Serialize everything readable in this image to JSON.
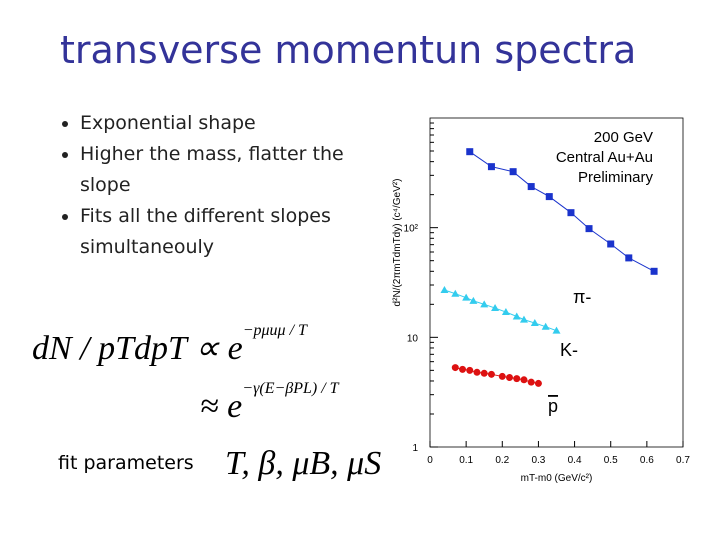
{
  "title": "transverse momentun spectra",
  "bullets": [
    "Exponential shape",
    "Higher the mass, flatter the slope",
    "Fits all the different slopes simultaneouly"
  ],
  "equations": {
    "line1": "dN / pTdpT ∝ e",
    "line1_exp": "−pμuμ / T",
    "line2": "≈ e",
    "line2_exp": "−γ(E−βPL) / T",
    "fit_label": "fit parameters",
    "fit_params": "T, β, μB, μS"
  },
  "chart_data": {
    "type": "scatter",
    "x_label": "mT-m0 (GeV/c²)",
    "y_label": "d²N/(2πmTdmTdy) (c⁴/GeV²)",
    "annotations": [
      "200 GeV",
      "Central Au+Au",
      "Preliminary"
    ],
    "xlim": [
      0,
      0.7
    ],
    "xticks": [
      0,
      0.1,
      0.2,
      0.3,
      0.4,
      0.5,
      0.6,
      0.7
    ],
    "ylim": [
      1,
      1000
    ],
    "log_y": true,
    "yticks": [
      1,
      10,
      {
        "value": 100,
        "label": "10²"
      }
    ],
    "series": [
      {
        "name": "π-",
        "color": "#1a33cc",
        "marker": "square",
        "x": [
          0.11,
          0.17,
          0.23,
          0.28,
          0.33,
          0.39,
          0.44,
          0.5,
          0.55,
          0.62
        ],
        "values": [
          493,
          360,
          324,
          237,
          192,
          137,
          98,
          71,
          53,
          40
        ]
      },
      {
        "name": "K-",
        "color": "#33ccee",
        "marker": "triangle",
        "x": [
          0.04,
          0.07,
          0.1,
          0.12,
          0.15,
          0.18,
          0.21,
          0.24,
          0.26,
          0.29,
          0.32,
          0.35
        ],
        "values": [
          27,
          25,
          23,
          21.5,
          20,
          18.5,
          17,
          15.5,
          14.5,
          13.5,
          12.5,
          11.5
        ]
      },
      {
        "name": "p",
        "color": "#dd1111",
        "marker": "circle",
        "x": [
          0.07,
          0.09,
          0.11,
          0.13,
          0.15,
          0.17,
          0.2,
          0.22,
          0.24,
          0.26,
          0.28,
          0.3
        ],
        "values": [
          5.3,
          5.1,
          5,
          4.8,
          4.7,
          4.6,
          4.4,
          4.3,
          4.2,
          4.1,
          3.9,
          3.8
        ]
      }
    ]
  }
}
